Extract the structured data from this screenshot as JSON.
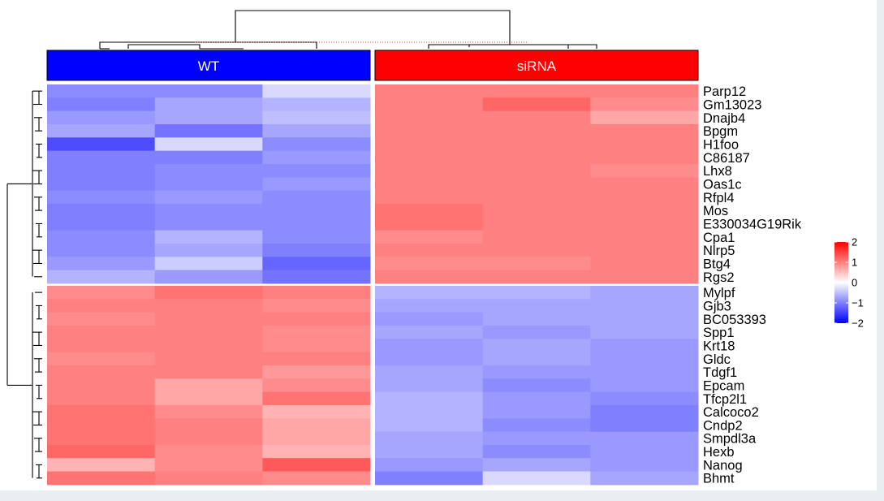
{
  "chart_data": {
    "type": "heatmap",
    "column_groups": [
      {
        "name": "WT",
        "color": "#0000ff",
        "columns": 3
      },
      {
        "name": "siRNA",
        "color": "#ff0000",
        "columns": 3
      }
    ],
    "rows": [
      "Parp12",
      "Gm13023",
      "Dnajb4",
      "Bpgm",
      "H1foo",
      "C86187",
      "Lhx8",
      "Oas1c",
      "Rfpl4",
      "Mos",
      "E330034G19Rik",
      "Cpa1",
      "Nlrp5",
      "Btg4",
      "Rgs2",
      "Mylpf",
      "Gjb3",
      "BC053393",
      "Spp1",
      "Krt18",
      "Gldc",
      "Tdgf1",
      "Epcam",
      "Tfcp2l1",
      "Calcoco2",
      "Cndp2",
      "Smpdl3a",
      "Hexb",
      "Nanog",
      "Bhmt"
    ],
    "row_clusters": [
      15,
      15
    ],
    "values": [
      [
        -0.9,
        -0.9,
        -0.3,
        1.0,
        1.0,
        1.0
      ],
      [
        -1.0,
        -0.7,
        -0.6,
        1.0,
        1.2,
        0.9
      ],
      [
        -0.8,
        -0.7,
        -0.5,
        1.0,
        1.0,
        0.7
      ],
      [
        -0.7,
        -1.1,
        -0.7,
        1.0,
        1.0,
        1.0
      ],
      [
        -1.4,
        -0.3,
        -0.9,
        1.0,
        1.0,
        1.0
      ],
      [
        -1.0,
        -1.0,
        -0.8,
        1.0,
        1.0,
        1.0
      ],
      [
        -1.0,
        -0.9,
        -0.9,
        1.0,
        1.0,
        0.9
      ],
      [
        -1.0,
        -0.9,
        -0.8,
        1.0,
        1.0,
        1.0
      ],
      [
        -0.9,
        -0.8,
        -0.9,
        1.0,
        1.0,
        1.0
      ],
      [
        -1.0,
        -0.9,
        -0.9,
        1.1,
        1.0,
        1.0
      ],
      [
        -1.0,
        -0.9,
        -0.9,
        1.1,
        1.0,
        1.0
      ],
      [
        -0.9,
        -0.6,
        -0.9,
        0.9,
        1.0,
        1.0
      ],
      [
        -0.9,
        -0.7,
        -1.0,
        1.0,
        1.0,
        1.0
      ],
      [
        -0.8,
        -0.4,
        -1.2,
        0.9,
        0.9,
        1.0
      ],
      [
        -0.6,
        -0.8,
        -1.1,
        1.0,
        1.0,
        1.0
      ],
      [
        0.9,
        1.1,
        1.0,
        -0.6,
        -0.6,
        -0.7
      ],
      [
        1.0,
        1.0,
        0.9,
        -0.7,
        -0.7,
        -0.7
      ],
      [
        0.9,
        1.0,
        1.0,
        -0.8,
        -0.7,
        -0.7
      ],
      [
        1.0,
        1.0,
        0.9,
        -0.7,
        -0.8,
        -0.7
      ],
      [
        1.0,
        1.0,
        0.9,
        -0.8,
        -0.7,
        -0.8
      ],
      [
        0.9,
        1.0,
        1.0,
        -0.8,
        -0.7,
        -0.8
      ],
      [
        1.0,
        1.0,
        0.8,
        -0.7,
        -0.8,
        -0.8
      ],
      [
        1.0,
        0.7,
        0.9,
        -0.7,
        -0.9,
        -0.8
      ],
      [
        1.0,
        0.7,
        1.1,
        -0.6,
        -0.8,
        -0.9
      ],
      [
        1.1,
        0.9,
        0.6,
        -0.6,
        -0.8,
        -1.0
      ],
      [
        1.1,
        1.0,
        0.7,
        -0.6,
        -0.9,
        -1.0
      ],
      [
        1.1,
        1.0,
        0.7,
        -0.7,
        -0.8,
        -0.8
      ],
      [
        1.2,
        0.9,
        0.6,
        -0.7,
        -0.9,
        -0.8
      ],
      [
        0.6,
        0.9,
        1.3,
        -0.8,
        -0.7,
        -0.8
      ],
      [
        1.1,
        1.0,
        0.9,
        -1.0,
        -0.3,
        -0.7
      ]
    ],
    "color_scale": {
      "low": "#0000ff",
      "mid": "#ffffff",
      "high": "#ff0000",
      "range": [
        -2,
        2
      ]
    },
    "legend": {
      "ticks": [
        2,
        1,
        0,
        -1,
        -2
      ],
      "labels": [
        "2",
        "1",
        "0",
        "−1",
        "−2"
      ],
      "position": "right"
    }
  }
}
